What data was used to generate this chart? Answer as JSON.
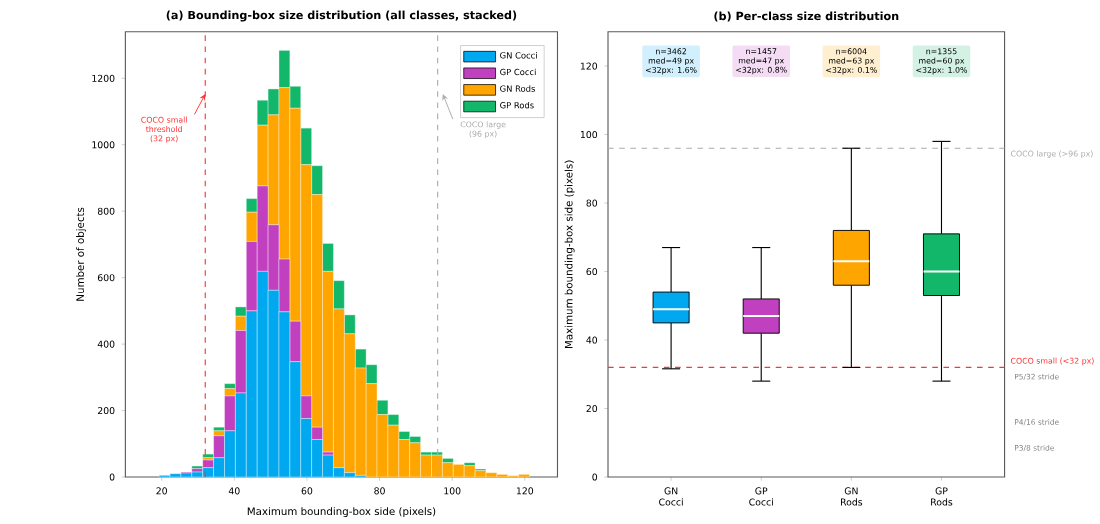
{
  "chart_data": [
    {
      "type": "bar",
      "title": "(a) Bounding-box size distribution (all classes, stacked)",
      "xlabel": "Maximum bounding-box side (pixels)",
      "ylabel": "Number of objects",
      "x": [
        20.8,
        23.8,
        26.8,
        29.8,
        32.8,
        35.8,
        38.8,
        41.8,
        44.8,
        47.8,
        50.8,
        53.8,
        56.8,
        59.8,
        62.8,
        65.8,
        68.8,
        71.8,
        74.8,
        77.8,
        80.8,
        83.8,
        86.8,
        89.8,
        92.8,
        95.8,
        98.8,
        101.8,
        104.8,
        107.8,
        110.8,
        113.8,
        116.8,
        119.8
      ],
      "stacked": true,
      "legend": "top right",
      "xlim": [
        10,
        129
      ],
      "xticks": [
        20,
        40,
        60,
        80,
        100,
        120
      ],
      "ylim": [
        0,
        1340
      ],
      "yticks": [
        0,
        200,
        400,
        600,
        800,
        1000,
        1200
      ],
      "series": [
        {
          "name": "GN Cocci",
          "color": "#00a8f0",
          "values": [
            5,
            10,
            12,
            15,
            28,
            58,
            139,
            253,
            500,
            619,
            562,
            497,
            347,
            176,
            113,
            66,
            28,
            13,
            5,
            0,
            0,
            0,
            0,
            0,
            0,
            0,
            0,
            0,
            0,
            0,
            0,
            0,
            0,
            0
          ]
        },
        {
          "name": "GP Cocci",
          "color": "#c040c0",
          "values": [
            0,
            0,
            3,
            10,
            23,
            66,
            105,
            188,
            209,
            257,
            197,
            159,
            122,
            68,
            37,
            9,
            0,
            0,
            0,
            0,
            0,
            0,
            0,
            0,
            0,
            0,
            0,
            0,
            0,
            0,
            0,
            0,
            0,
            0
          ]
        },
        {
          "name": "GN Rods",
          "color": "#ffa500",
          "values": [
            0,
            0,
            0,
            null,
            7,
            15,
            22,
            43,
            88,
            183,
            331,
            516,
            641,
            696,
            700,
            544,
            478,
            418,
            323,
            281,
            188,
            156,
            113,
            103,
            66,
            66,
            43,
            38,
            34,
            19,
            13,
            8,
            4,
            8
          ]
        },
        {
          "name": "GP Rods",
          "color": "#12b76a",
          "values": [
            0,
            0,
            0,
            8,
            11,
            11,
            15,
            28,
            41,
            75,
            78,
            112,
            66,
            110,
            87,
            84,
            85,
            57,
            57,
            57,
            43,
            32,
            24,
            19,
            9,
            9,
            13,
            null,
            9,
            5,
            0,
            null,
            0,
            0
          ]
        }
      ],
      "ref_lines": [
        {
          "axis": "x",
          "value": 32,
          "label": "COCO small threshold (32 px)",
          "color": "#ff3333",
          "line_style": "dashed"
        },
        {
          "axis": "x",
          "value": 96,
          "label": "COCO large (96 px)",
          "color": "#aaaaaa",
          "line_style": "dashed"
        }
      ]
    },
    {
      "type": "box",
      "title": "(b) Per-class size distribution",
      "ylabel": "Maximum bounding-box side (pixels)",
      "categories": [
        "GN Cocci",
        "GP Cocci",
        "GN Rods",
        "GP Rods"
      ],
      "colors": [
        "#00a8f0",
        "#c040c0",
        "#ffa500",
        "#12b76a"
      ],
      "ylim": [
        0,
        130
      ],
      "yticks": [
        0,
        20,
        40,
        60,
        80,
        100,
        120
      ],
      "boxes": [
        {
          "low": 31.6,
          "q1": 45,
          "median": 49,
          "q3": 54,
          "high": 67
        },
        {
          "low": 28,
          "q1": 42,
          "median": 47,
          "q3": 52,
          "high": 67
        },
        {
          "low": 32,
          "q1": 56,
          "median": 63,
          "q3": 72,
          "high": 96
        },
        {
          "low": 28,
          "q1": 53,
          "median": 60,
          "q3": 71,
          "high": 98
        }
      ],
      "ref_lines": [
        {
          "axis": "y",
          "value": 96,
          "label": "COCO large (>96 px)",
          "color": "#aaaaaa",
          "line_style": "dashed"
        },
        {
          "axis": "y",
          "value": 32,
          "label": "COCO small (<32 px)",
          "color": "#ff3333",
          "line_style": "dashed"
        }
      ],
      "annotations": [
        "n=3462",
        "med=49 px",
        "<32px: 1.6%",
        "n=1457",
        "med=47 px",
        "<32px: 0.8%",
        "n=6004",
        "med=63 px",
        "<32px: 0.1%",
        "n=1355",
        "med=60 px",
        "<32px: 1.0%",
        "P5/32 stride",
        "P4/16 stride",
        "P3/8 stride"
      ]
    }
  ]
}
